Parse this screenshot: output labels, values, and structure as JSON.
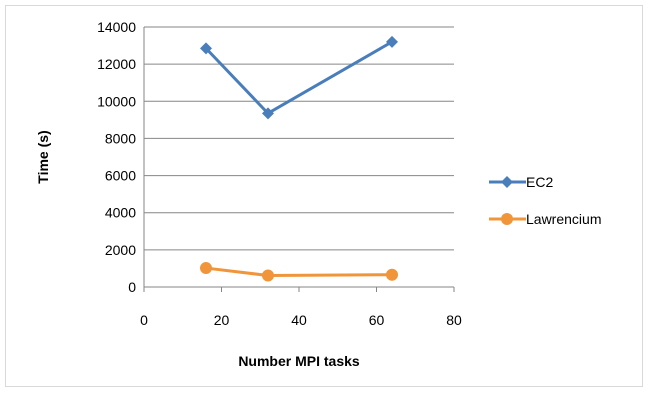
{
  "chart_data": {
    "type": "scatter",
    "xlabel": "Number MPI tasks",
    "ylabel": "Time (s)",
    "xlim": [
      0,
      80
    ],
    "ylim": [
      0,
      14000
    ],
    "x_ticks": [
      "0",
      "20",
      "40",
      "60",
      "80"
    ],
    "y_ticks": [
      "0",
      "2000",
      "4000",
      "6000",
      "8000",
      "10000",
      "12000",
      "14000"
    ],
    "grid": "horizontal",
    "legend_position": "right",
    "series": [
      {
        "name": "EC2",
        "color": "#4a7ebb",
        "marker": "diamond",
        "x": [
          16,
          32,
          64
        ],
        "y": [
          12850,
          9350,
          13200
        ]
      },
      {
        "name": "Lawrencium",
        "color": "#f0953a",
        "marker": "circle",
        "x": [
          16,
          32,
          64
        ],
        "y": [
          1020,
          620,
          660
        ]
      }
    ]
  }
}
